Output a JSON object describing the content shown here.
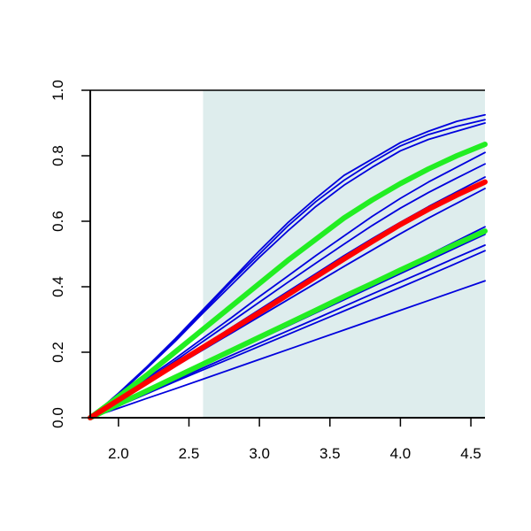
{
  "chart_data": {
    "type": "line",
    "title": "",
    "xlabel": "",
    "ylabel": "",
    "xlim": [
      1.8,
      4.6
    ],
    "ylim": [
      0.0,
      1.0
    ],
    "x_ticks": [
      2.0,
      2.5,
      3.0,
      3.5,
      4.0,
      4.5
    ],
    "x_tick_labels": [
      "2.0",
      "2.5",
      "3.0",
      "3.5",
      "4.0",
      "4.5"
    ],
    "y_ticks": [
      0.0,
      0.2,
      0.4,
      0.6,
      0.8,
      1.0
    ],
    "y_tick_labels": [
      "0.0",
      "0.2",
      "0.4",
      "0.6",
      "0.8",
      "1.0"
    ],
    "shaded_region": {
      "x_from": 2.6,
      "x_to": 4.6,
      "color": "#deeded"
    },
    "grid": false,
    "x": [
      1.8,
      2.0,
      2.2,
      2.4,
      2.6,
      2.8,
      3.0,
      3.2,
      3.4,
      3.6,
      3.8,
      4.0,
      4.2,
      4.4,
      4.6
    ],
    "series": [
      {
        "color": "#0000dd",
        "width": 1.8,
        "values": [
          0.0,
          0.075,
          0.155,
          0.24,
          0.33,
          0.42,
          0.51,
          0.595,
          0.67,
          0.74,
          0.79,
          0.84,
          0.875,
          0.905,
          0.925
        ]
      },
      {
        "color": "#0000dd",
        "width": 1.8,
        "values": [
          0.0,
          0.073,
          0.152,
          0.236,
          0.325,
          0.415,
          0.5,
          0.585,
          0.66,
          0.725,
          0.78,
          0.83,
          0.865,
          0.89,
          0.91
        ]
      },
      {
        "color": "#0000dd",
        "width": 1.8,
        "values": [
          0.0,
          0.071,
          0.15,
          0.232,
          0.32,
          0.405,
          0.49,
          0.57,
          0.645,
          0.71,
          0.765,
          0.815,
          0.85,
          0.875,
          0.9
        ]
      },
      {
        "color": "#0000dd",
        "width": 1.8,
        "values": [
          0.0,
          0.06,
          0.12,
          0.18,
          0.243,
          0.305,
          0.37,
          0.432,
          0.495,
          0.555,
          0.615,
          0.67,
          0.72,
          0.765,
          0.81
        ]
      },
      {
        "color": "#0000dd",
        "width": 1.8,
        "values": [
          0.0,
          0.058,
          0.115,
          0.173,
          0.233,
          0.293,
          0.353,
          0.413,
          0.472,
          0.53,
          0.587,
          0.64,
          0.688,
          0.732,
          0.775
        ]
      },
      {
        "color": "#0000dd",
        "width": 1.8,
        "values": [
          0.0,
          0.055,
          0.11,
          0.165,
          0.22,
          0.275,
          0.33,
          0.385,
          0.44,
          0.495,
          0.547,
          0.597,
          0.645,
          0.69,
          0.735
        ]
      },
      {
        "color": "#0000dd",
        "width": 1.8,
        "values": [
          0.0,
          0.052,
          0.104,
          0.156,
          0.207,
          0.258,
          0.309,
          0.36,
          0.411,
          0.462,
          0.512,
          0.562,
          0.61,
          0.655,
          0.7
        ]
      },
      {
        "color": "#0000dd",
        "width": 1.8,
        "values": [
          0.0,
          0.042,
          0.083,
          0.124,
          0.165,
          0.206,
          0.247,
          0.288,
          0.33,
          0.372,
          0.413,
          0.455,
          0.497,
          0.54,
          0.583
        ]
      },
      {
        "color": "#0000dd",
        "width": 1.8,
        "values": [
          0.0,
          0.04,
          0.08,
          0.12,
          0.16,
          0.2,
          0.24,
          0.28,
          0.32,
          0.36,
          0.4,
          0.44,
          0.48,
          0.52,
          0.56
        ]
      },
      {
        "color": "#0000dd",
        "width": 1.8,
        "values": [
          0.0,
          0.038,
          0.076,
          0.114,
          0.152,
          0.19,
          0.228,
          0.265,
          0.302,
          0.34,
          0.378,
          0.415,
          0.452,
          0.49,
          0.527
        ]
      },
      {
        "color": "#0000dd",
        "width": 1.8,
        "values": [
          0.0,
          0.036,
          0.073,
          0.11,
          0.146,
          0.182,
          0.218,
          0.254,
          0.29,
          0.326,
          0.362,
          0.398,
          0.435,
          0.472,
          0.51
        ]
      },
      {
        "color": "#0000dd",
        "width": 1.8,
        "values": [
          0.0,
          0.029,
          0.059,
          0.088,
          0.118,
          0.148,
          0.178,
          0.208,
          0.238,
          0.268,
          0.298,
          0.328,
          0.358,
          0.388,
          0.418
        ]
      },
      {
        "color": "#22ee22",
        "width": 6,
        "values": [
          0.0,
          0.064,
          0.13,
          0.2,
          0.27,
          0.34,
          0.41,
          0.48,
          0.545,
          0.61,
          0.665,
          0.715,
          0.76,
          0.8,
          0.835
        ]
      },
      {
        "color": "#22ee22",
        "width": 6,
        "values": [
          0.0,
          0.041,
          0.082,
          0.123,
          0.164,
          0.205,
          0.246,
          0.287,
          0.328,
          0.37,
          0.41,
          0.451,
          0.491,
          0.531,
          0.57
        ]
      },
      {
        "color": "#ff0000",
        "width": 6,
        "values": [
          0.0,
          0.054,
          0.108,
          0.162,
          0.215,
          0.268,
          0.321,
          0.375,
          0.43,
          0.485,
          0.538,
          0.59,
          0.637,
          0.68,
          0.72
        ]
      }
    ]
  }
}
